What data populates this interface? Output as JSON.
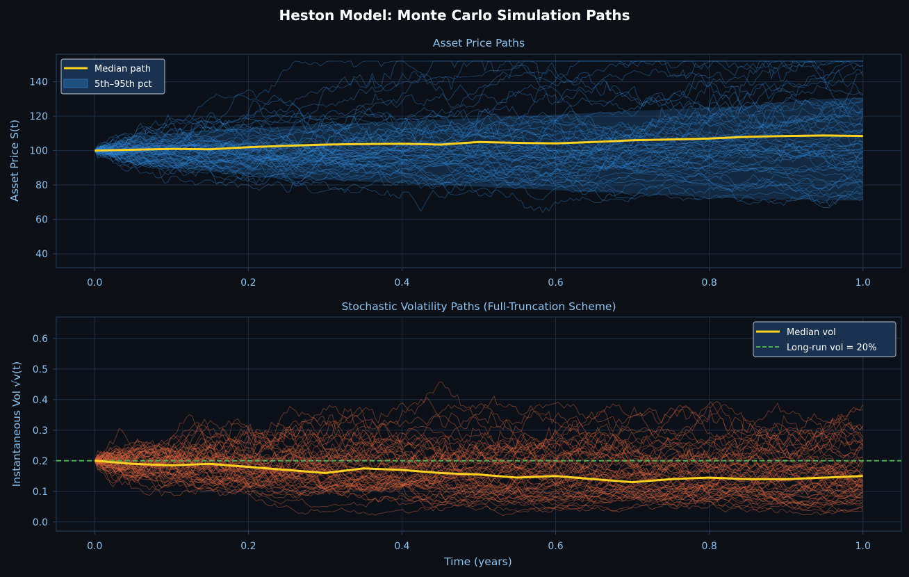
{
  "figure": {
    "title": "Heston Model: Monte Carlo Simulation Paths",
    "background": "#0d1017",
    "axes_face": "#0c1119"
  },
  "chart_data": [
    {
      "type": "line",
      "title": "Asset Price Paths",
      "xlabel": "",
      "ylabel": "Asset Price S(t)",
      "xlim": [
        -0.05,
        1.05
      ],
      "ylim": [
        32,
        156
      ],
      "xticks": [
        0.0,
        0.2,
        0.4,
        0.6,
        0.8,
        1.0
      ],
      "xtick_labels": [
        "0.0",
        "0.2",
        "0.4",
        "0.6",
        "0.8",
        "1.0"
      ],
      "yticks": [
        40,
        60,
        80,
        100,
        120,
        140
      ],
      "ytick_labels": [
        "40",
        "60",
        "80",
        "100",
        "120",
        "140"
      ],
      "grid": true,
      "legend": {
        "position": "top-left",
        "entries": [
          "Median path",
          "5th–95th pct"
        ]
      },
      "colors": {
        "paths": "#2f86d6",
        "median": "#ffd21f",
        "band": "#1f5587"
      },
      "median": {
        "name": "Median path",
        "x": [
          0.0,
          0.05,
          0.1,
          0.15,
          0.2,
          0.25,
          0.3,
          0.35,
          0.4,
          0.45,
          0.5,
          0.55,
          0.6,
          0.65,
          0.7,
          0.75,
          0.8,
          0.85,
          0.9,
          0.95,
          1.0
        ],
        "y": [
          100,
          100.5,
          101,
          100.8,
          102,
          102.8,
          103.5,
          103.8,
          104,
          103.5,
          105,
          104.5,
          104.2,
          105,
          106,
          106.5,
          107,
          108,
          108.5,
          108.8,
          108.5
        ]
      },
      "band": {
        "name": "5th–95th pct",
        "x": [
          0.0,
          0.05,
          0.1,
          0.15,
          0.2,
          0.25,
          0.3,
          0.35,
          0.4,
          0.45,
          0.5,
          0.55,
          0.6,
          0.65,
          0.7,
          0.75,
          0.8,
          0.85,
          0.9,
          0.95,
          1.0
        ],
        "lower": [
          100,
          92,
          90,
          88,
          86,
          84,
          83,
          82,
          81,
          80,
          79,
          78,
          77,
          76,
          75,
          74,
          73,
          72,
          72,
          71,
          71
        ],
        "upper": [
          100,
          108,
          110,
          112,
          113,
          114,
          115,
          116,
          117,
          118,
          119,
          120,
          121,
          122,
          123,
          124,
          125,
          126,
          128,
          130,
          131
        ]
      },
      "n_paths": 60
    },
    {
      "type": "line",
      "title": "Stochastic Volatility Paths (Full-Truncation Scheme)",
      "xlabel": "Time (years)",
      "ylabel": "Instantaneous Vol √v(t)",
      "xlim": [
        -0.05,
        1.05
      ],
      "ylim": [
        -0.03,
        0.67
      ],
      "xticks": [
        0.0,
        0.2,
        0.4,
        0.6,
        0.8,
        1.0
      ],
      "xtick_labels": [
        "0.0",
        "0.2",
        "0.4",
        "0.6",
        "0.8",
        "1.0"
      ],
      "yticks": [
        0.0,
        0.1,
        0.2,
        0.3,
        0.4,
        0.5,
        0.6
      ],
      "ytick_labels": [
        "0.0",
        "0.1",
        "0.2",
        "0.3",
        "0.4",
        "0.5",
        "0.6"
      ],
      "grid": true,
      "legend": {
        "position": "top-right",
        "entries": [
          "Median vol",
          "Long-run vol = 20%"
        ]
      },
      "colors": {
        "paths": "#e0673d",
        "median": "#ffd21f",
        "longrun": "#4caf50"
      },
      "median": {
        "name": "Median vol",
        "x": [
          0.0,
          0.05,
          0.1,
          0.15,
          0.2,
          0.25,
          0.3,
          0.35,
          0.4,
          0.45,
          0.5,
          0.55,
          0.6,
          0.65,
          0.7,
          0.75,
          0.8,
          0.85,
          0.9,
          0.95,
          1.0
        ],
        "y": [
          0.2,
          0.19,
          0.185,
          0.19,
          0.18,
          0.17,
          0.16,
          0.175,
          0.17,
          0.16,
          0.155,
          0.145,
          0.15,
          0.14,
          0.13,
          0.14,
          0.145,
          0.14,
          0.14,
          0.145,
          0.15
        ]
      },
      "long_run": {
        "name": "Long-run vol = 20%",
        "value": 0.2
      },
      "n_paths": 60
    }
  ]
}
